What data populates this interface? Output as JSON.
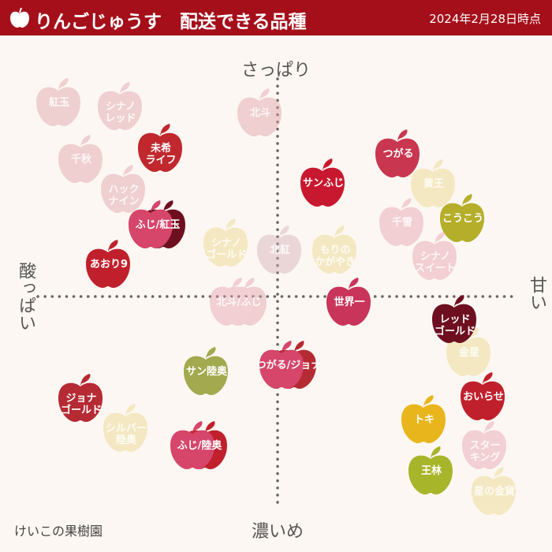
{
  "header": {
    "title": "りんごじゅうす　配送できる品種",
    "date": "2024年2月28日時点"
  },
  "axes": {
    "top": "さっぱり",
    "bottom": "濃いめ",
    "left": "酸っぱい",
    "right": "甘い"
  },
  "footer": "けいこの果樹園",
  "varieties": [
    {
      "label": "紅玉",
      "color": "#e0a0a8",
      "available": false
    },
    {
      "label": "シナノ\nレッド",
      "color": "#e0a0a8",
      "available": false
    },
    {
      "label": "千秋",
      "color": "#e0a0a8",
      "available": false
    },
    {
      "label": "ハック\nナイン",
      "color": "#e0a0a8",
      "available": false
    },
    {
      "label": "北斗",
      "color": "#e0a0a8",
      "available": false
    },
    {
      "label": "黄王",
      "color": "#ecd68a",
      "available": false
    },
    {
      "label": "千雪",
      "color": "#e8a0ac",
      "available": false
    },
    {
      "label": "シナノ\nスイート",
      "color": "#e8a0ac",
      "available": false
    },
    {
      "label": "シナノ\nゴールド",
      "color": "#ecd68a",
      "available": false
    },
    {
      "label": "北紅",
      "color": "#d8b0b8",
      "available": false
    },
    {
      "label": "もりの\nかがやき",
      "color": "#ecd68a",
      "available": false
    },
    {
      "label": "北斗/ふじ",
      "color": "#e8a0ac",
      "color2": "#e0a0a8",
      "available": false
    },
    {
      "label": "金星",
      "color": "#ecd68a",
      "available": false
    },
    {
      "label": "シルバー\n陸奥",
      "color": "#ecd68a",
      "available": false
    },
    {
      "label": "スター\nキング",
      "color": "#e8a0ac",
      "available": false
    },
    {
      "label": "星の金貨",
      "color": "#ecd68a",
      "available": false
    },
    {
      "label": "未希\nライフ",
      "color": "#c0282e",
      "available": true
    },
    {
      "label": "つがる",
      "color": "#c9364f",
      "available": true
    },
    {
      "label": "サンふじ",
      "color": "#c8182f",
      "available": true
    },
    {
      "label": "こうこう",
      "color": "#b5ae2b",
      "available": true
    },
    {
      "label": "ふじ/紅玉",
      "color": "#d6456a",
      "color2": "#6e0f1f",
      "available": true
    },
    {
      "label": "あおり9",
      "color": "#c0202c",
      "available": true
    },
    {
      "label": "世界一",
      "color": "#c9345a",
      "available": true
    },
    {
      "label": "レッド\nゴールド",
      "color": "#6e0f1f",
      "available": true
    },
    {
      "label": "サン陸奥",
      "color": "#a3a94e",
      "available": true
    },
    {
      "label": "つがる/ジョナ",
      "color": "#d6456a",
      "color2": "#b52a33",
      "available": true
    },
    {
      "label": "ジョナ\nゴールド",
      "color": "#b52a33",
      "available": true
    },
    {
      "label": "おいらせ",
      "color": "#c0202c",
      "available": true
    },
    {
      "label": "トキ",
      "color": "#e8b51c",
      "available": true
    },
    {
      "label": "王林",
      "color": "#a7b52a",
      "available": true
    },
    {
      "label": "ふじ/陸奥",
      "color": "#d6456a",
      "color2": "#c0202c",
      "available": true
    }
  ]
}
